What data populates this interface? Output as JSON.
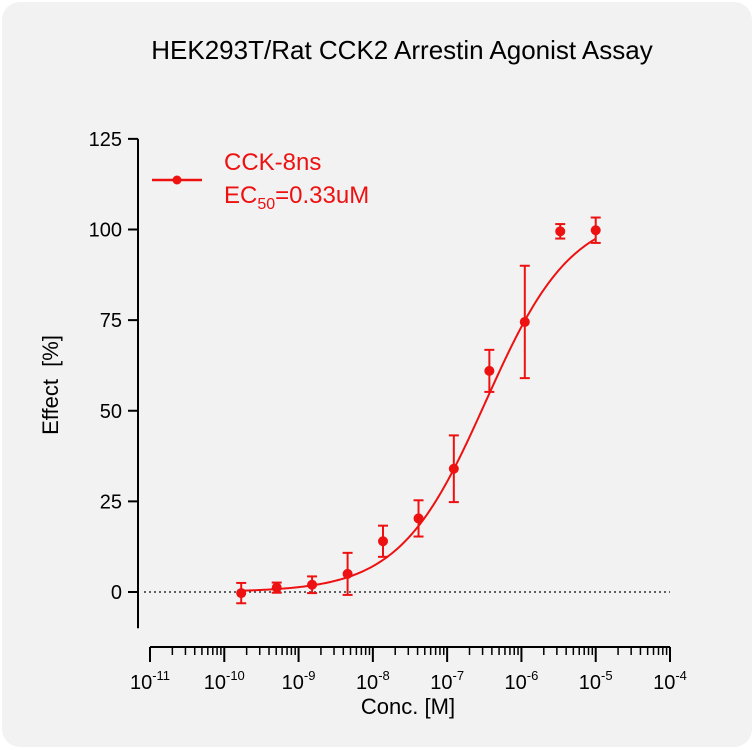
{
  "chart_data": {
    "type": "scatter",
    "title": "HEK293T/Rat CCK2 Arrestin Agonist Assay",
    "xlabel": "Conc. [M]",
    "ylabel": "Effect  [%]",
    "xscale": "log",
    "xlim": [
      1e-11,
      0.0001
    ],
    "ylim": [
      -10,
      125
    ],
    "yticks": [
      0,
      25,
      50,
      75,
      100,
      125
    ],
    "xticks": [
      {
        "base": "10",
        "exp": "-11"
      },
      {
        "base": "10",
        "exp": "-10"
      },
      {
        "base": "10",
        "exp": "-9"
      },
      {
        "base": "10",
        "exp": "-8"
      },
      {
        "base": "10",
        "exp": "-7"
      },
      {
        "base": "10",
        "exp": "-6"
      },
      {
        "base": "10",
        "exp": "-5"
      },
      {
        "base": "10",
        "exp": "-4"
      }
    ],
    "grid": false,
    "zero_line": "dotted",
    "legend": {
      "placement": "top-left",
      "name": "CCK-8ns",
      "ec50_label": "EC",
      "ec50_sub": "50",
      "ec50_value": "=0.33uM"
    },
    "color": "#ee1111",
    "series": [
      {
        "name": "CCK-8ns",
        "x": [
          1.69e-10,
          5.08e-10,
          1.52e-09,
          4.57e-09,
          1.37e-08,
          4.12e-08,
          1.23e-07,
          3.7e-07,
          1.11e-06,
          3.33e-06,
          1e-05
        ],
        "y": [
          -0.3,
          1.2,
          2.0,
          5.0,
          14.0,
          20.3,
          34.0,
          61.0,
          74.5,
          99.5,
          99.8
        ],
        "err": [
          2.8,
          1.4,
          2.3,
          5.8,
          4.3,
          5.0,
          9.2,
          5.8,
          15.5,
          2.0,
          3.5
        ]
      }
    ],
    "fit": {
      "bottom": 0,
      "top": 105,
      "ec50": 3.3e-07,
      "hill": 0.75
    }
  }
}
